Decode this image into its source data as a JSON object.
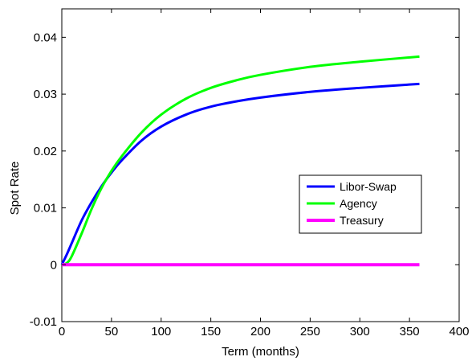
{
  "chart_data": {
    "type": "line",
    "title": "",
    "xlabel": "Term (months)",
    "ylabel": "Spot Rate",
    "xlim": [
      0,
      400
    ],
    "ylim": [
      -0.01,
      0.045
    ],
    "xticks": [
      0,
      50,
      100,
      150,
      200,
      250,
      300,
      350,
      400
    ],
    "yticks": [
      -0.01,
      0,
      0.01,
      0.02,
      0.03,
      0.04
    ],
    "xtick_labels": [
      "0",
      "50",
      "100",
      "150",
      "200",
      "250",
      "300",
      "350",
      "400"
    ],
    "ytick_labels": [
      "-0.01",
      "0",
      "0.01",
      "0.02",
      "0.03",
      "0.04"
    ],
    "grid": false,
    "legend_position": "center-right",
    "series": [
      {
        "name": "Libor-Swap",
        "color": "#0000ff",
        "x": [
          0,
          5,
          10,
          20,
          30,
          40,
          50,
          60,
          80,
          100,
          125,
          150,
          175,
          200,
          250,
          300,
          360
        ],
        "y": [
          0,
          0.0018,
          0.0038,
          0.0078,
          0.011,
          0.0138,
          0.0162,
          0.0183,
          0.0218,
          0.0243,
          0.0264,
          0.0278,
          0.0287,
          0.0294,
          0.0304,
          0.0311,
          0.0318
        ]
      },
      {
        "name": "Agency",
        "color": "#00ff00",
        "x": [
          0,
          5,
          10,
          20,
          30,
          40,
          50,
          60,
          80,
          100,
          125,
          150,
          175,
          200,
          250,
          300,
          360
        ],
        "y": [
          0,
          0.0003,
          0.0015,
          0.0055,
          0.0098,
          0.0135,
          0.0165,
          0.019,
          0.0232,
          0.0264,
          0.0292,
          0.0311,
          0.0324,
          0.0334,
          0.0348,
          0.0357,
          0.0366
        ]
      },
      {
        "name": "Treasury",
        "color": "#ff00ff",
        "x": [
          0,
          360
        ],
        "y": [
          0,
          0
        ]
      }
    ]
  }
}
